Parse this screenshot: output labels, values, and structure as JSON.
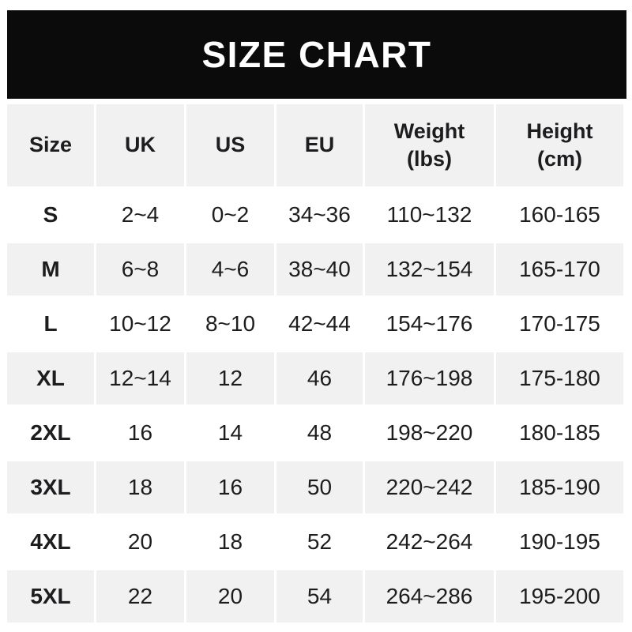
{
  "chart_data": {
    "type": "table",
    "title": "SIZE CHART",
    "columns": [
      "Size",
      "UK",
      "US",
      "EU",
      "Weight\n(lbs)",
      "Height\n(cm)"
    ],
    "rows": [
      [
        "S",
        "2~4",
        "0~2",
        "34~36",
        "110~132",
        "160-165"
      ],
      [
        "M",
        "6~8",
        "4~6",
        "38~40",
        "132~154",
        "165-170"
      ],
      [
        "L",
        "10~12",
        "8~10",
        "42~44",
        "154~176",
        "170-175"
      ],
      [
        "XL",
        "12~14",
        "12",
        "46",
        "176~198",
        "175-180"
      ],
      [
        "2XL",
        "16",
        "14",
        "48",
        "198~220",
        "180-185"
      ],
      [
        "3XL",
        "18",
        "16",
        "50",
        "220~242",
        "185-190"
      ],
      [
        "4XL",
        "20",
        "18",
        "52",
        "242~264",
        "190-195"
      ],
      [
        "5XL",
        "22",
        "20",
        "54",
        "264~286",
        "195-200"
      ]
    ],
    "layout": {
      "banner_bg": "#0b0b0b",
      "banner_text_color": "#ffffff",
      "shaded_row_bg": "#f1f1f1",
      "cell_text_color": "#1d1d1f",
      "range_separator_sizes": "~",
      "range_separator_height": "-"
    }
  }
}
